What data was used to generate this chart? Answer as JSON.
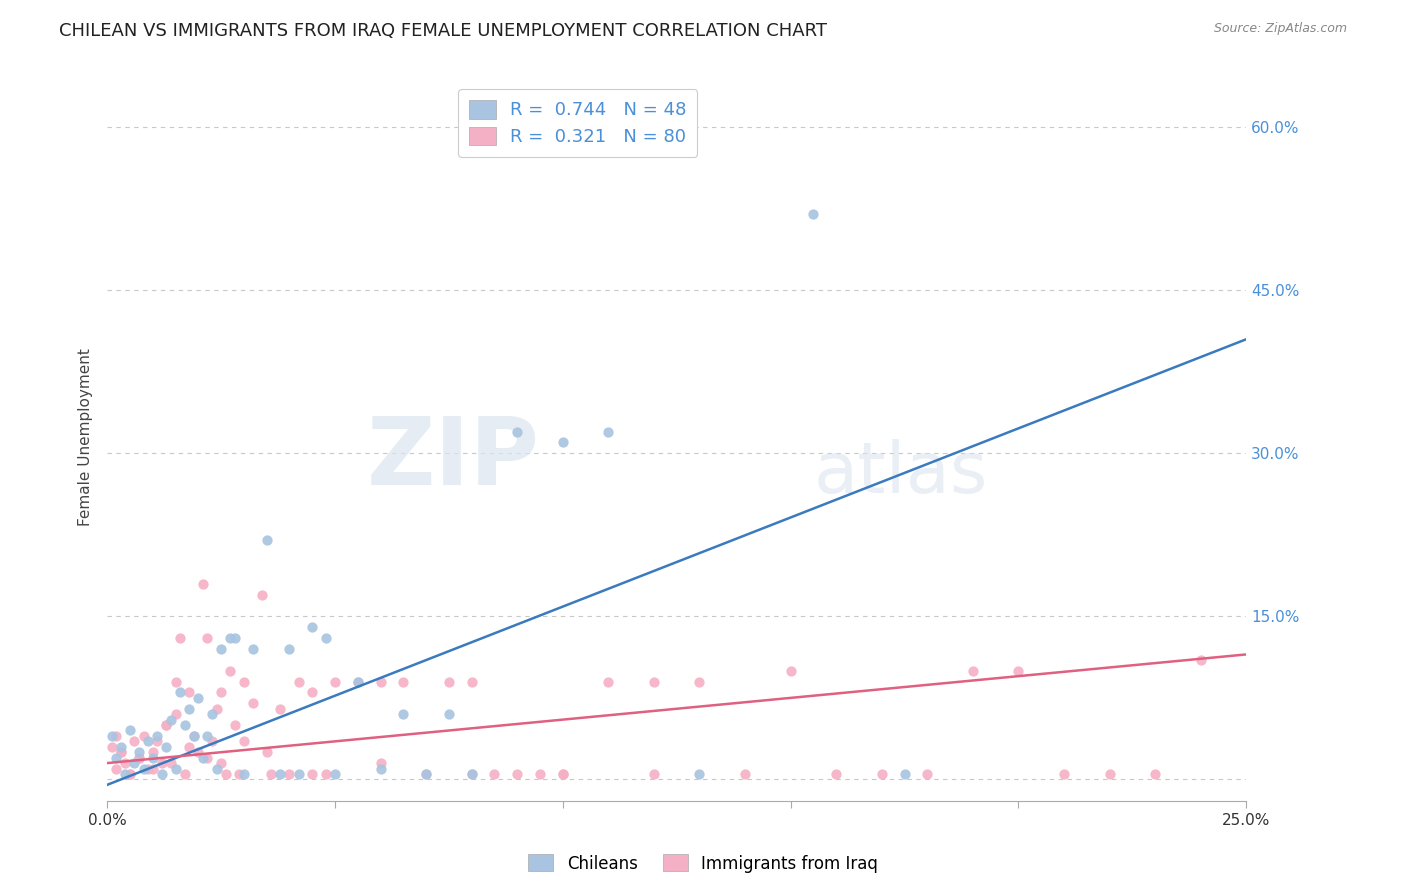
{
  "title": "CHILEAN VS IMMIGRANTS FROM IRAQ FEMALE UNEMPLOYMENT CORRELATION CHART",
  "source": "Source: ZipAtlas.com",
  "ylabel": "Female Unemployment",
  "x_min": 0.0,
  "x_max": 0.25,
  "y_min": -0.02,
  "y_max": 0.65,
  "y_ticks": [
    0.0,
    0.15,
    0.3,
    0.45,
    0.6
  ],
  "y_tick_labels": [
    "",
    "15.0%",
    "30.0%",
    "45.0%",
    "60.0%"
  ],
  "x_ticks": [
    0.0,
    0.05,
    0.1,
    0.15,
    0.2,
    0.25
  ],
  "x_tick_labels": [
    "0.0%",
    "",
    "",
    "",
    "",
    "25.0%"
  ],
  "grid_color": "#c8c8c8",
  "background_color": "#ffffff",
  "watermark_zip": "ZIP",
  "watermark_atlas": "atlas",
  "series": [
    {
      "name": "Chileans",
      "color": "#a8c4e0",
      "line_color": "#3a7abf",
      "R": 0.744,
      "N": 48,
      "scatter_x": [
        0.001,
        0.002,
        0.003,
        0.004,
        0.005,
        0.006,
        0.007,
        0.008,
        0.009,
        0.01,
        0.011,
        0.012,
        0.013,
        0.014,
        0.015,
        0.016,
        0.017,
        0.018,
        0.019,
        0.02,
        0.021,
        0.022,
        0.023,
        0.024,
        0.025,
        0.027,
        0.028,
        0.03,
        0.032,
        0.035,
        0.038,
        0.04,
        0.042,
        0.045,
        0.048,
        0.05,
        0.055,
        0.06,
        0.065,
        0.07,
        0.075,
        0.08,
        0.09,
        0.1,
        0.11,
        0.13,
        0.155,
        0.175
      ],
      "scatter_y": [
        0.04,
        0.02,
        0.03,
        0.005,
        0.045,
        0.015,
        0.025,
        0.01,
        0.035,
        0.02,
        0.04,
        0.005,
        0.03,
        0.055,
        0.01,
        0.08,
        0.05,
        0.065,
        0.04,
        0.075,
        0.02,
        0.04,
        0.06,
        0.01,
        0.12,
        0.13,
        0.13,
        0.005,
        0.12,
        0.22,
        0.005,
        0.12,
        0.005,
        0.14,
        0.13,
        0.005,
        0.09,
        0.01,
        0.06,
        0.005,
        0.06,
        0.005,
        0.32,
        0.31,
        0.32,
        0.005,
        0.52,
        0.005
      ],
      "line_x": [
        0.0,
        0.25
      ],
      "line_y": [
        -0.005,
        0.405
      ]
    },
    {
      "name": "Immigrants from Iraq",
      "color": "#f4b0c4",
      "line_color": "#e06080",
      "R": 0.321,
      "N": 80,
      "scatter_x": [
        0.001,
        0.002,
        0.003,
        0.004,
        0.005,
        0.006,
        0.007,
        0.008,
        0.009,
        0.01,
        0.011,
        0.012,
        0.013,
        0.014,
        0.015,
        0.016,
        0.017,
        0.018,
        0.019,
        0.02,
        0.021,
        0.022,
        0.023,
        0.024,
        0.025,
        0.026,
        0.027,
        0.028,
        0.029,
        0.03,
        0.032,
        0.034,
        0.036,
        0.038,
        0.04,
        0.042,
        0.045,
        0.048,
        0.05,
        0.055,
        0.06,
        0.065,
        0.07,
        0.075,
        0.08,
        0.085,
        0.09,
        0.095,
        0.1,
        0.11,
        0.12,
        0.13,
        0.14,
        0.15,
        0.16,
        0.17,
        0.18,
        0.19,
        0.2,
        0.21,
        0.22,
        0.23,
        0.24,
        0.002,
        0.003,
        0.005,
        0.007,
        0.01,
        0.013,
        0.015,
        0.018,
        0.022,
        0.025,
        0.03,
        0.035,
        0.045,
        0.06,
        0.08,
        0.1,
        0.12
      ],
      "scatter_y": [
        0.03,
        0.04,
        0.025,
        0.015,
        0.005,
        0.035,
        0.02,
        0.04,
        0.01,
        0.025,
        0.035,
        0.015,
        0.05,
        0.015,
        0.09,
        0.13,
        0.005,
        0.08,
        0.04,
        0.025,
        0.18,
        0.13,
        0.035,
        0.065,
        0.08,
        0.005,
        0.1,
        0.05,
        0.005,
        0.09,
        0.07,
        0.17,
        0.005,
        0.065,
        0.005,
        0.09,
        0.08,
        0.005,
        0.09,
        0.09,
        0.09,
        0.09,
        0.005,
        0.09,
        0.09,
        0.005,
        0.005,
        0.005,
        0.005,
        0.09,
        0.09,
        0.09,
        0.005,
        0.1,
        0.005,
        0.005,
        0.005,
        0.1,
        0.1,
        0.005,
        0.005,
        0.005,
        0.11,
        0.01,
        0.025,
        0.005,
        0.02,
        0.01,
        0.05,
        0.06,
        0.03,
        0.02,
        0.015,
        0.035,
        0.025,
        0.005,
        0.015,
        0.005,
        0.005,
        0.005
      ],
      "line_x": [
        0.0,
        0.25
      ],
      "line_y": [
        0.015,
        0.115
      ]
    }
  ],
  "legend_color": "#4a90d9",
  "title_fontsize": 13,
  "axis_label_fontsize": 11,
  "tick_fontsize": 11,
  "right_tick_color": "#4a90d9",
  "bottom_legend_labels": [
    "Chileans",
    "Immigrants from Iraq"
  ]
}
